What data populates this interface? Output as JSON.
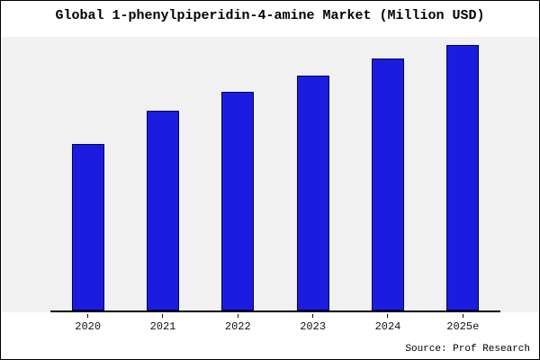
{
  "title": "Global 1-phenylpiperidin-4-amine Market (Million USD)",
  "source": "Source: Prof Research",
  "colors": {
    "bar": "#1c1ce0",
    "bar_border": "#000060",
    "plot_band_bg": "#f1f1f1",
    "page_bg": "#ffffff",
    "axis": "#000000"
  },
  "chart_data": {
    "type": "bar",
    "categories": [
      "2020",
      "2021",
      "2022",
      "2023",
      "2024",
      "2025e"
    ],
    "values": [
      61,
      73,
      80,
      86,
      92,
      97
    ],
    "title": "Global 1-phenylpiperidin-4-amine Market (Million USD)",
    "xlabel": "",
    "ylabel": "",
    "ylim": [
      0,
      100
    ],
    "grid": false,
    "legend": false,
    "annotations": [
      "Source: Prof Research"
    ]
  }
}
